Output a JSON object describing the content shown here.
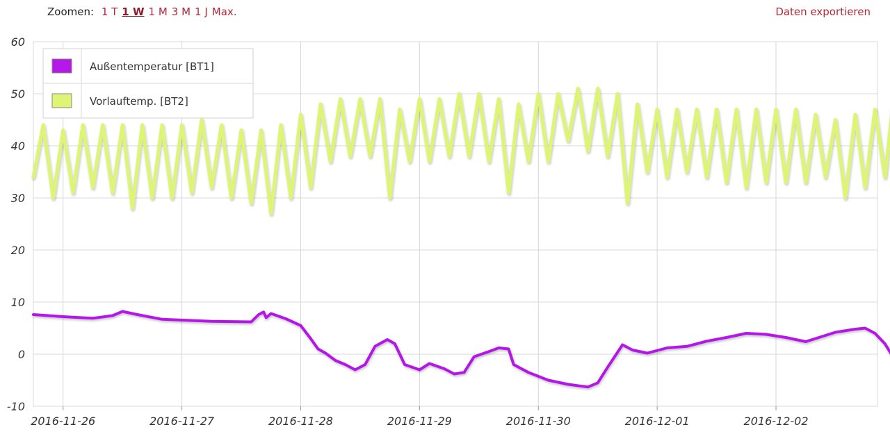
{
  "toolbar": {
    "zoom_label": "Zoomen:",
    "zoom_options": [
      "1 T",
      "1 W",
      "1 M",
      "3 M",
      "1 J",
      "Max."
    ],
    "active_zoom": "1 W",
    "export_label": "Daten exportieren"
  },
  "colors": {
    "series1": "#b519e8",
    "series2": "#ddf475",
    "grid": "#d8d8d8",
    "link": "#b02a3a"
  },
  "chart_data": {
    "type": "line",
    "title": "",
    "xlabel": "",
    "ylabel": "",
    "ylim": [
      -10,
      60
    ],
    "yticks": [
      -10,
      0,
      10,
      20,
      30,
      40,
      50,
      60
    ],
    "xlim": [
      "2016-11-25 18:00",
      "2016-12-02 20:30"
    ],
    "xticks": [
      "2016-11-26",
      "2016-11-27",
      "2016-11-28",
      "2016-11-29",
      "2016-11-30",
      "2016-12-01",
      "2016-12-02"
    ],
    "grid": true,
    "legend": "top-left",
    "series": [
      {
        "name": "Außentemperatur [BT1]",
        "points": [
          [
            "2016-11-25 18:00",
            7.6
          ],
          [
            "2016-11-26 00:00",
            7.2
          ],
          [
            "2016-11-26 06:00",
            6.9
          ],
          [
            "2016-11-26 10:00",
            7.4
          ],
          [
            "2016-11-26 12:00",
            8.2
          ],
          [
            "2016-11-26 15:00",
            7.6
          ],
          [
            "2016-11-26 20:00",
            6.7
          ],
          [
            "2016-11-27 06:00",
            6.3
          ],
          [
            "2016-11-27 14:00",
            6.2
          ],
          [
            "2016-11-27 15:30",
            7.6
          ],
          [
            "2016-11-27 16:30",
            8.1
          ],
          [
            "2016-11-27 17:00",
            7.0
          ],
          [
            "2016-11-27 18:00",
            7.8
          ],
          [
            "2016-11-27 21:00",
            6.8
          ],
          [
            "2016-11-28 00:00",
            5.5
          ],
          [
            "2016-11-28 02:00",
            3.0
          ],
          [
            "2016-11-28 03:30",
            1.0
          ],
          [
            "2016-11-28 05:00",
            0.2
          ],
          [
            "2016-11-28 07:00",
            -1.2
          ],
          [
            "2016-11-28 09:00",
            -2.0
          ],
          [
            "2016-11-28 11:00",
            -3.0
          ],
          [
            "2016-11-28 13:00",
            -2.0
          ],
          [
            "2016-11-28 15:00",
            1.5
          ],
          [
            "2016-11-28 17:30",
            2.8
          ],
          [
            "2016-11-28 19:00",
            2.0
          ],
          [
            "2016-11-28 21:00",
            -2.0
          ],
          [
            "2016-11-29 00:00",
            -3.0
          ],
          [
            "2016-11-29 02:00",
            -1.8
          ],
          [
            "2016-11-29 05:00",
            -2.8
          ],
          [
            "2016-11-29 07:00",
            -3.8
          ],
          [
            "2016-11-29 09:00",
            -3.5
          ],
          [
            "2016-11-29 11:00",
            -0.5
          ],
          [
            "2016-11-29 14:00",
            0.5
          ],
          [
            "2016-11-29 16:00",
            1.2
          ],
          [
            "2016-11-29 18:00",
            1.0
          ],
          [
            "2016-11-29 19:00",
            -2.0
          ],
          [
            "2016-11-29 22:00",
            -3.5
          ],
          [
            "2016-11-30 02:00",
            -5.0
          ],
          [
            "2016-11-30 06:00",
            -5.8
          ],
          [
            "2016-11-30 10:00",
            -6.3
          ],
          [
            "2016-11-30 12:00",
            -5.5
          ],
          [
            "2016-11-30 14:00",
            -2.5
          ],
          [
            "2016-11-30 17:00",
            1.8
          ],
          [
            "2016-11-30 19:00",
            0.8
          ],
          [
            "2016-11-30 22:00",
            0.2
          ],
          [
            "2016-12-01 02:00",
            1.2
          ],
          [
            "2016-12-01 06:00",
            1.5
          ],
          [
            "2016-12-01 10:00",
            2.5
          ],
          [
            "2016-12-01 14:00",
            3.2
          ],
          [
            "2016-12-01 18:00",
            4.0
          ],
          [
            "2016-12-01 22:00",
            3.8
          ],
          [
            "2016-12-02 02:00",
            3.2
          ],
          [
            "2016-12-02 04:00",
            2.8
          ],
          [
            "2016-12-02 06:00",
            2.4
          ],
          [
            "2016-12-02 08:00",
            3.0
          ],
          [
            "2016-12-02 12:00",
            4.2
          ],
          [
            "2016-12-02 16:00",
            4.8
          ],
          [
            "2016-12-02 18:00",
            5.0
          ],
          [
            "2016-12-02 20:00",
            4.0
          ],
          [
            "2016-12-02 22:00",
            2.0
          ],
          [
            "2016-12-02 23:30",
            -0.3
          ]
        ]
      },
      {
        "name": "Vorlauftemp. [BT2]",
        "points": [
          [
            "2016-11-25 18:00",
            34
          ],
          [
            "2016-11-25 20:00",
            44
          ],
          [
            "2016-11-25 22:00",
            30
          ],
          [
            "2016-11-26 00:00",
            43
          ],
          [
            "2016-11-26 02:00",
            31
          ],
          [
            "2016-11-26 04:00",
            44
          ],
          [
            "2016-11-26 06:00",
            32
          ],
          [
            "2016-11-26 08:00",
            44
          ],
          [
            "2016-11-26 10:00",
            31
          ],
          [
            "2016-11-26 12:00",
            44
          ],
          [
            "2016-11-26 14:00",
            28
          ],
          [
            "2016-11-26 16:00",
            44
          ],
          [
            "2016-11-26 18:00",
            30
          ],
          [
            "2016-11-26 20:00",
            44
          ],
          [
            "2016-11-26 22:00",
            30
          ],
          [
            "2016-11-27 00:00",
            44
          ],
          [
            "2016-11-27 02:00",
            31
          ],
          [
            "2016-11-27 04:00",
            45
          ],
          [
            "2016-11-27 06:00",
            32
          ],
          [
            "2016-11-27 08:00",
            44
          ],
          [
            "2016-11-27 10:00",
            30
          ],
          [
            "2016-11-27 12:00",
            43
          ],
          [
            "2016-11-27 14:00",
            29
          ],
          [
            "2016-11-27 16:00",
            43
          ],
          [
            "2016-11-27 18:00",
            27
          ],
          [
            "2016-11-27 20:00",
            44
          ],
          [
            "2016-11-27 22:00",
            30
          ],
          [
            "2016-11-28 00:00",
            46
          ],
          [
            "2016-11-28 02:00",
            32
          ],
          [
            "2016-11-28 04:00",
            48
          ],
          [
            "2016-11-28 06:00",
            37
          ],
          [
            "2016-11-28 08:00",
            49
          ],
          [
            "2016-11-28 10:00",
            38
          ],
          [
            "2016-11-28 12:00",
            49
          ],
          [
            "2016-11-28 14:00",
            38
          ],
          [
            "2016-11-28 16:00",
            49
          ],
          [
            "2016-11-28 18:00",
            30
          ],
          [
            "2016-11-28 20:00",
            47
          ],
          [
            "2016-11-28 22:00",
            37
          ],
          [
            "2016-11-29 00:00",
            49
          ],
          [
            "2016-11-29 02:00",
            37
          ],
          [
            "2016-11-29 04:00",
            49
          ],
          [
            "2016-11-29 06:00",
            38
          ],
          [
            "2016-11-29 08:00",
            50
          ],
          [
            "2016-11-29 10:00",
            38
          ],
          [
            "2016-11-29 12:00",
            50
          ],
          [
            "2016-11-29 14:00",
            37
          ],
          [
            "2016-11-29 16:00",
            49
          ],
          [
            "2016-11-29 18:00",
            31
          ],
          [
            "2016-11-29 20:00",
            48
          ],
          [
            "2016-11-29 22:00",
            37
          ],
          [
            "2016-11-30 00:00",
            50
          ],
          [
            "2016-11-30 02:00",
            37
          ],
          [
            "2016-11-30 04:00",
            50
          ],
          [
            "2016-11-30 06:00",
            41
          ],
          [
            "2016-11-30 08:00",
            51
          ],
          [
            "2016-11-30 10:00",
            39
          ],
          [
            "2016-11-30 12:00",
            51
          ],
          [
            "2016-11-30 14:00",
            38
          ],
          [
            "2016-11-30 16:00",
            50
          ],
          [
            "2016-11-30 18:00",
            29
          ],
          [
            "2016-11-30 20:00",
            48
          ],
          [
            "2016-11-30 22:00",
            35
          ],
          [
            "2016-12-01 00:00",
            47
          ],
          [
            "2016-12-01 02:00",
            34
          ],
          [
            "2016-12-01 04:00",
            47
          ],
          [
            "2016-12-01 06:00",
            35
          ],
          [
            "2016-12-01 08:00",
            47
          ],
          [
            "2016-12-01 10:00",
            34
          ],
          [
            "2016-12-01 12:00",
            47
          ],
          [
            "2016-12-01 14:00",
            33
          ],
          [
            "2016-12-01 16:00",
            47
          ],
          [
            "2016-12-01 18:00",
            32
          ],
          [
            "2016-12-01 20:00",
            47
          ],
          [
            "2016-12-01 22:00",
            33
          ],
          [
            "2016-12-02 00:00",
            47
          ],
          [
            "2016-12-02 02:00",
            33
          ],
          [
            "2016-12-02 04:00",
            47
          ],
          [
            "2016-12-02 06:00",
            33
          ],
          [
            "2016-12-02 08:00",
            46
          ],
          [
            "2016-12-02 10:00",
            34
          ],
          [
            "2016-12-02 12:00",
            45
          ],
          [
            "2016-12-02 14:00",
            30
          ],
          [
            "2016-12-02 16:00",
            46
          ],
          [
            "2016-12-02 18:00",
            32
          ],
          [
            "2016-12-02 20:00",
            47
          ],
          [
            "2016-12-02 22:00",
            34
          ],
          [
            "2016-12-02 23:30",
            47
          ],
          [
            "2016-12-03 00:30",
            40
          ]
        ]
      }
    ]
  }
}
